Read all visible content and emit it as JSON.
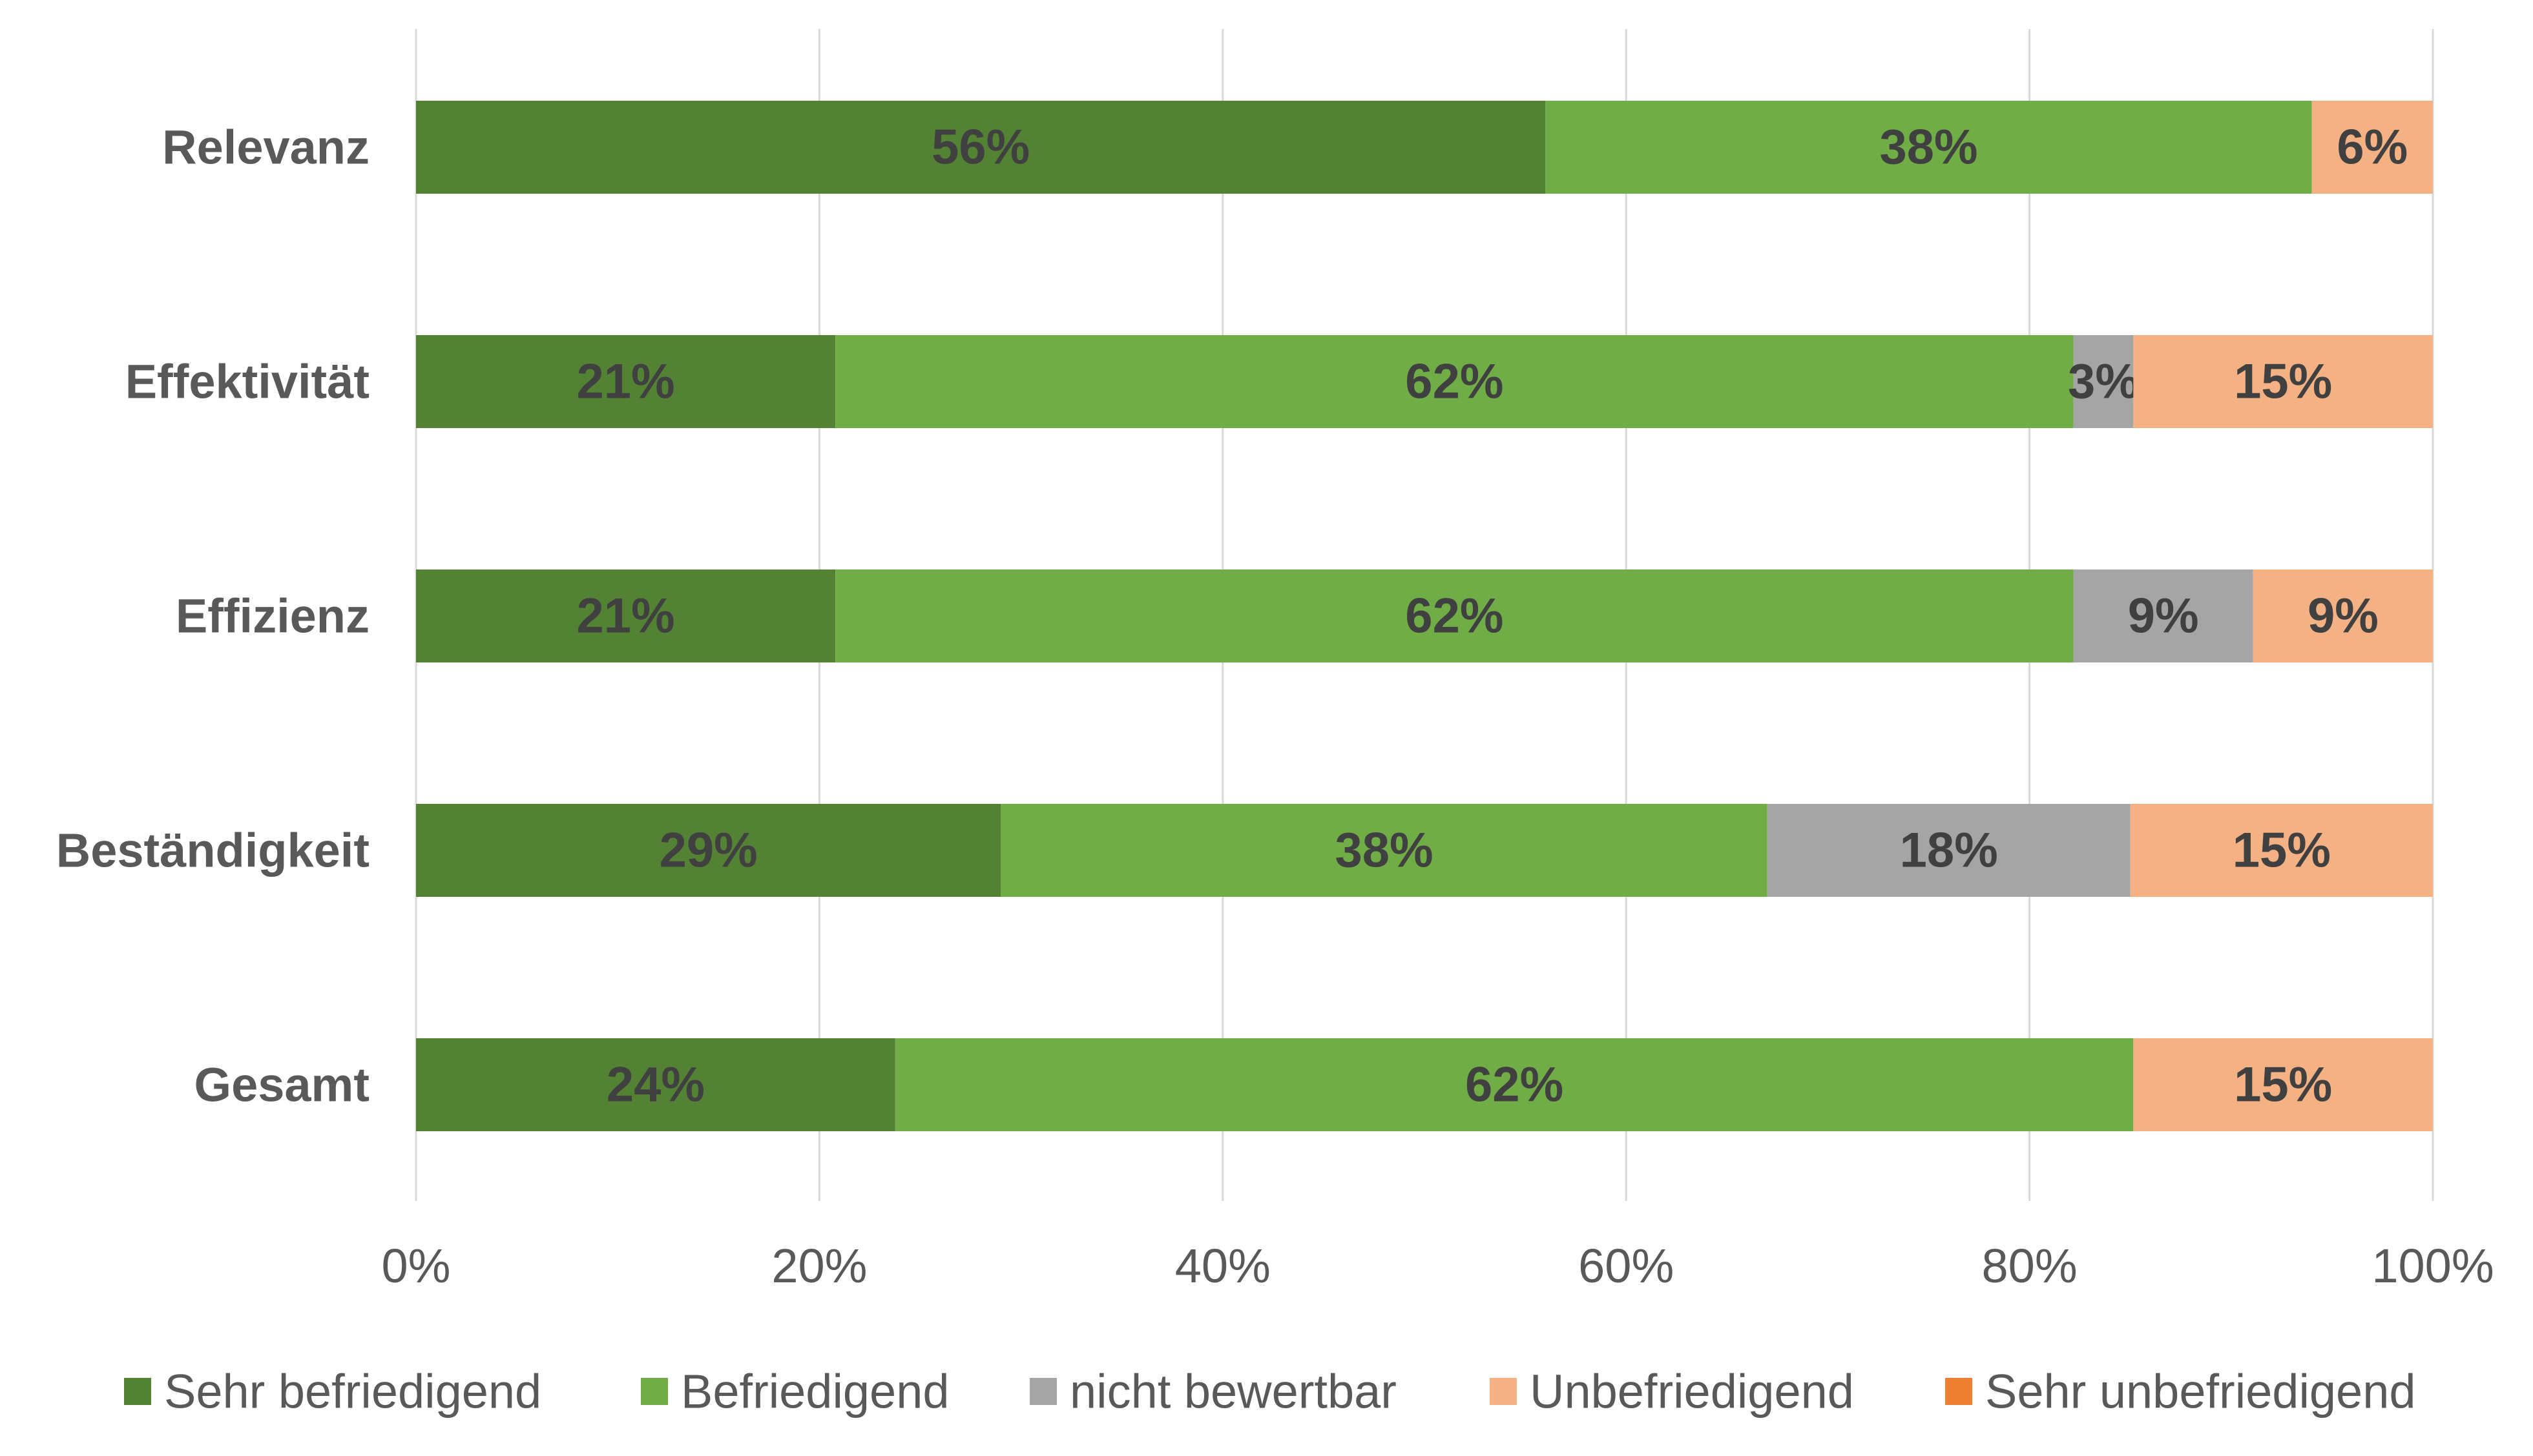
{
  "chart_data": {
    "type": "bar",
    "orientation": "horizontal",
    "stacked": "percent",
    "categories": [
      "Relevanz",
      "Effektivität",
      "Effizienz",
      "Beständigkeit",
      "Gesamt"
    ],
    "series": [
      {
        "name": "Sehr befriedigend",
        "color": "#548235",
        "values": [
          56,
          21,
          21,
          29,
          24
        ],
        "labels": [
          "56%",
          "21%",
          "21%",
          "29%",
          "24%"
        ]
      },
      {
        "name": "Befriedigend",
        "color": "#70ad47",
        "values": [
          38,
          62,
          62,
          38,
          62
        ],
        "labels": [
          "38%",
          "62%",
          "62%",
          "38%",
          "62%"
        ]
      },
      {
        "name": "nicht bewertbar",
        "color": "#a5a5a5",
        "values": [
          0,
          3,
          9,
          18,
          0
        ],
        "labels": [
          "",
          "3%",
          "9%",
          "18%",
          ""
        ]
      },
      {
        "name": "Unbefriedigend",
        "color": "#f4b183",
        "values": [
          6,
          15,
          9,
          15,
          15
        ],
        "labels": [
          "6%",
          "15%",
          "9%",
          "15%",
          "15%"
        ]
      },
      {
        "name": "Sehr unbefriedigend",
        "color": "#ed7d31",
        "values": [
          0,
          0,
          0,
          0,
          0
        ],
        "labels": [
          "",
          "",
          "",
          "",
          ""
        ]
      }
    ],
    "xlim": [
      0,
      100
    ],
    "xticks": [
      "0%",
      "20%",
      "40%",
      "60%",
      "80%",
      "100%"
    ],
    "grid": "vertical",
    "legend": "bottom",
    "title": "",
    "xlabel": "",
    "ylabel": ""
  }
}
